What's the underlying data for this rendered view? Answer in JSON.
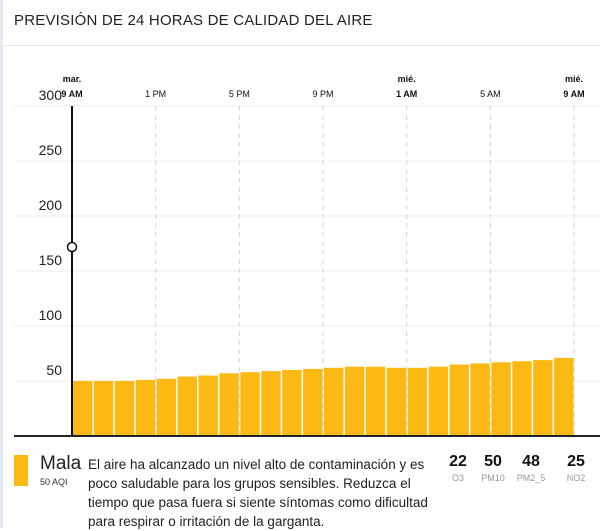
{
  "header": {
    "title": "PREVISIÓN DE 24 HORAS DE CALIDAD DEL AIRE"
  },
  "chart_data": {
    "type": "bar",
    "x_ticks": [
      {
        "day": "mar.",
        "time": "9 AM"
      },
      {
        "day": "",
        "time": "1 PM"
      },
      {
        "day": "",
        "time": "5 PM"
      },
      {
        "day": "",
        "time": "9 PM"
      },
      {
        "day": "mié.",
        "time": "1 AM"
      },
      {
        "day": "",
        "time": "5 AM"
      },
      {
        "day": "mié.",
        "time": "9 AM"
      }
    ],
    "y_ticks": [
      "50",
      "100",
      "150",
      "200",
      "250",
      "300"
    ],
    "ylim": [
      0,
      300
    ],
    "values": [
      50,
      50,
      50,
      51,
      52,
      54,
      55,
      57,
      58,
      59,
      60,
      61,
      62,
      63,
      63,
      62,
      62,
      63,
      65,
      66,
      67,
      68,
      69,
      71
    ],
    "bar_color": "#fdb913",
    "grid": true
  },
  "current": {
    "category": "Mala",
    "aqi": "50 AQI",
    "color": "#fdb913",
    "description": "El aire ha alcanzado un nivel alto de contaminación y es poco saludable para los grupos sensibles. Reduzca el tiempo que pasa fuera si siente síntomas como dificultad para respirar o irritación de la garganta.",
    "pollutants": [
      {
        "value": "22",
        "name": "O3"
      },
      {
        "value": "50",
        "name": "PM10"
      },
      {
        "value": "48",
        "name": "PM2_5"
      },
      {
        "value": "25",
        "name": "NO2"
      }
    ]
  }
}
